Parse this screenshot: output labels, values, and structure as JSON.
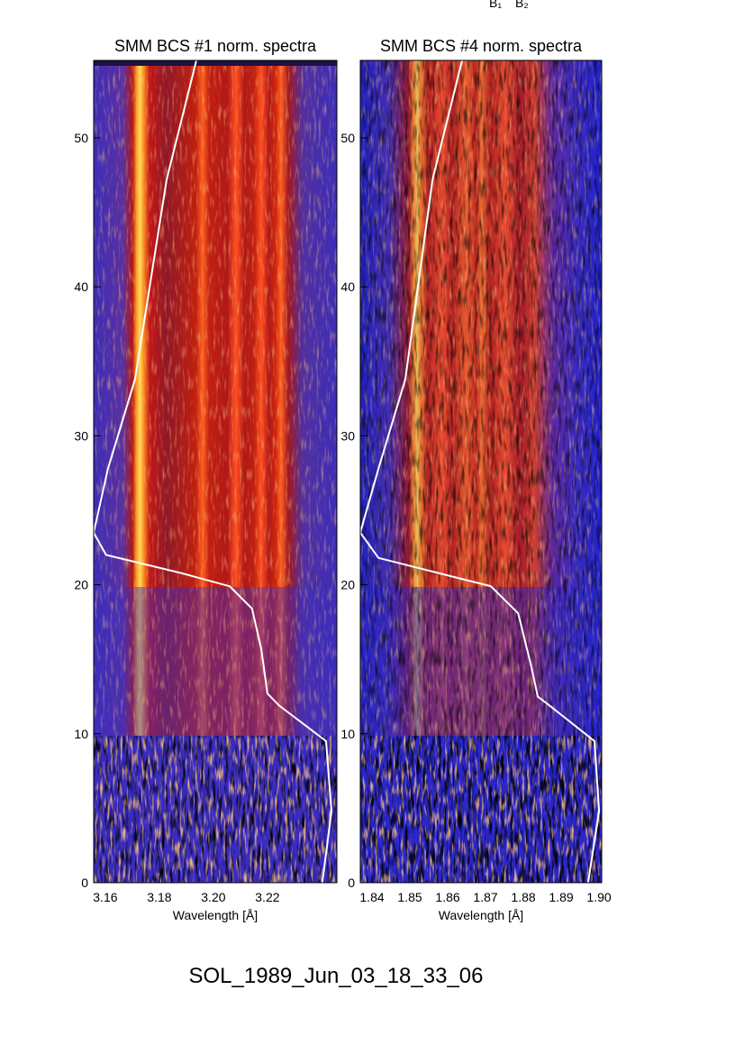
{
  "top_labels": [
    "B₁",
    "B₂"
  ],
  "footer": "SOL_1989_Jun_03_18_33_06",
  "chart_data": [
    {
      "type": "heatmap",
      "title": "SMM BCS #1 norm. spectra",
      "xlabel": "Wavelength [Å]",
      "xlim": [
        3.1557,
        3.2457
      ],
      "xticks": [
        3.16,
        3.18,
        {
          "value": 3.2,
          "label": "3.20"
        },
        3.22
      ],
      "ylim": [
        0,
        55.2
      ],
      "yticks": [
        0,
        10,
        20,
        30,
        40,
        50
      ],
      "curve": {
        "color": "#ffffff",
        "x": [
          3.1937,
          3.1827,
          3.171,
          3.161,
          3.1557,
          3.1603,
          3.1877,
          3.206,
          3.2143,
          3.2177,
          3.22,
          3.2243,
          3.2417,
          3.2437,
          3.2403
        ],
        "y": [
          55.2,
          47.2,
          33.8,
          27.8,
          23.5,
          22.0,
          20.8,
          19.9,
          18.4,
          15.7,
          12.7,
          11.9,
          9.5,
          4.8,
          0
        ]
      }
    },
    {
      "type": "heatmap",
      "title": "SMM BCS #4 norm. spectra",
      "xlabel": "Wavelength [Å]",
      "xlim": [
        1.8369,
        1.9007
      ],
      "xticks": [
        1.84,
        1.85,
        1.86,
        1.87,
        1.88,
        1.89,
        {
          "value": 1.9,
          "label": "1.90"
        }
      ],
      "ylim": [
        0,
        55.2
      ],
      "yticks": [
        0,
        10,
        20,
        30,
        40,
        50
      ],
      "curve": {
        "color": "#ffffff",
        "x": [
          1.8638,
          1.856,
          1.8488,
          1.8417,
          1.8369,
          1.8417,
          1.8714,
          1.8786,
          1.8821,
          1.8838,
          1.8869,
          1.8988,
          1.9,
          1.8971
        ],
        "y": [
          55.2,
          47.2,
          33.8,
          27.8,
          23.5,
          21.8,
          19.9,
          18.1,
          14.5,
          12.5,
          11.9,
          9.5,
          4.8,
          0
        ]
      }
    }
  ]
}
